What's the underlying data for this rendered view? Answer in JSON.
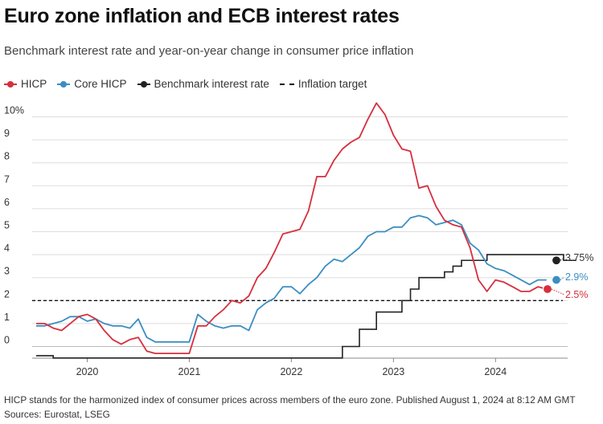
{
  "title": "Euro zone inflation and ECB interest rates",
  "subtitle": "Benchmark interest rate and year-on-year change in consumer price inflation",
  "footnote": "HICP stands for the harmonized index of consumer prices across members of the euro zone. Published August 1, 2024 at 8:12 AM GMT",
  "source": "Sources: Eurostat, LSEG",
  "colors": {
    "hicp": "#d62f3e",
    "core": "#3b8ec2",
    "rate": "#222222",
    "target": "#111111",
    "grid": "#dddddd"
  },
  "chart_data": {
    "type": "line",
    "ylim": [
      -1,
      10.5
    ],
    "y_ticks": [
      0,
      1,
      2,
      3,
      4,
      5,
      6,
      7,
      8,
      9,
      10
    ],
    "y_tick_labels": [
      "0",
      "1",
      "2",
      "3",
      "4",
      "5",
      "6",
      "7",
      "8",
      "9",
      "10%"
    ],
    "x_ticks": [
      "2020",
      "2021",
      "2022",
      "2023",
      "2024"
    ],
    "legend_position": "top-left",
    "grid": true,
    "start": "2019-07",
    "series": [
      {
        "key": "hicp",
        "name": "HICP",
        "values": [
          1.0,
          1.0,
          0.8,
          0.7,
          1.0,
          1.3,
          1.4,
          1.2,
          0.7,
          0.3,
          0.1,
          0.3,
          0.4,
          -0.2,
          -0.3,
          -0.3,
          -0.3,
          -0.3,
          -0.3,
          0.9,
          0.9,
          1.3,
          1.6,
          2.0,
          1.9,
          2.2,
          3.0,
          3.4,
          4.1,
          4.9,
          5.0,
          5.1,
          5.9,
          7.4,
          7.4,
          8.1,
          8.6,
          8.9,
          9.1,
          9.9,
          10.6,
          10.1,
          9.2,
          8.6,
          8.5,
          6.9,
          7.0,
          6.1,
          5.5,
          5.3,
          5.2,
          4.3,
          2.9,
          2.4,
          2.9,
          2.8,
          2.6,
          2.4,
          2.4,
          2.6,
          2.5
        ]
      },
      {
        "key": "core",
        "name": "Core HICP",
        "values": [
          0.9,
          0.9,
          1.0,
          1.1,
          1.3,
          1.3,
          1.1,
          1.2,
          1.0,
          0.9,
          0.9,
          0.8,
          1.2,
          0.4,
          0.2,
          0.2,
          0.2,
          0.2,
          0.2,
          1.4,
          1.1,
          0.9,
          0.8,
          0.9,
          0.9,
          0.7,
          1.6,
          1.9,
          2.1,
          2.6,
          2.6,
          2.3,
          2.7,
          3.0,
          3.5,
          3.8,
          3.7,
          4.0,
          4.3,
          4.8,
          5.0,
          5.0,
          5.2,
          5.2,
          5.6,
          5.7,
          5.6,
          5.3,
          5.4,
          5.5,
          5.3,
          4.5,
          4.2,
          3.6,
          3.4,
          3.3,
          3.1,
          2.9,
          2.7,
          2.9,
          2.9
        ]
      },
      {
        "key": "rate",
        "name": "Benchmark interest rate",
        "values": [
          -0.4,
          -0.4,
          -0.5,
          -0.5,
          -0.5,
          -0.5,
          -0.5,
          -0.5,
          -0.5,
          -0.5,
          -0.5,
          -0.5,
          -0.5,
          -0.5,
          -0.5,
          -0.5,
          -0.5,
          -0.5,
          -0.5,
          -0.5,
          -0.5,
          -0.5,
          -0.5,
          -0.5,
          -0.5,
          -0.5,
          -0.5,
          -0.5,
          -0.5,
          -0.5,
          -0.5,
          -0.5,
          -0.5,
          -0.5,
          -0.5,
          -0.5,
          0.0,
          0.0,
          0.75,
          0.75,
          1.5,
          1.5,
          1.5,
          2.0,
          2.5,
          3.0,
          3.0,
          3.0,
          3.25,
          3.5,
          3.75,
          3.75,
          3.75,
          4.0,
          4.0,
          4.0,
          4.0,
          4.0,
          4.0,
          4.0,
          4.0,
          4.0,
          3.75,
          3.75
        ]
      },
      {
        "key": "target",
        "name": "Inflation target",
        "values": [
          2.0,
          2.0
        ]
      }
    ],
    "end_labels": [
      {
        "key": "rate",
        "value": 3.75,
        "label": "3.75%"
      },
      {
        "key": "core",
        "value": 2.9,
        "label": "2.9%"
      },
      {
        "key": "hicp",
        "value": 2.5,
        "label": "2.5%"
      }
    ]
  }
}
